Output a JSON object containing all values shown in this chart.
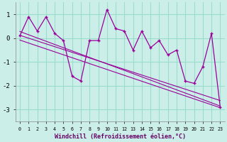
{
  "xlabel": "Windchill (Refroidissement éolien,°C)",
  "background_color": "#cceee8",
  "grid_color": "#99ddcc",
  "line_color": "#990099",
  "hours": [
    0,
    1,
    2,
    3,
    4,
    5,
    6,
    7,
    8,
    9,
    10,
    11,
    12,
    13,
    14,
    15,
    16,
    17,
    18,
    19,
    20,
    21,
    22,
    23
  ],
  "values": [
    0.1,
    0.9,
    0.3,
    0.9,
    0.2,
    -0.1,
    -1.6,
    -1.8,
    -0.1,
    -0.1,
    1.2,
    0.4,
    0.3,
    -0.5,
    0.3,
    -0.4,
    -0.1,
    -0.7,
    -0.5,
    -1.8,
    -1.9,
    -1.2,
    0.2,
    -2.9
  ],
  "ylim": [
    -3.5,
    1.5
  ],
  "xlim": [
    -0.5,
    23.5
  ],
  "yticks": [
    -3,
    -2,
    -1,
    0,
    1
  ],
  "trend_lines": [
    [
      0.28,
      -2.85
    ],
    [
      0.12,
      -2.62
    ],
    [
      -0.08,
      -2.92
    ]
  ]
}
